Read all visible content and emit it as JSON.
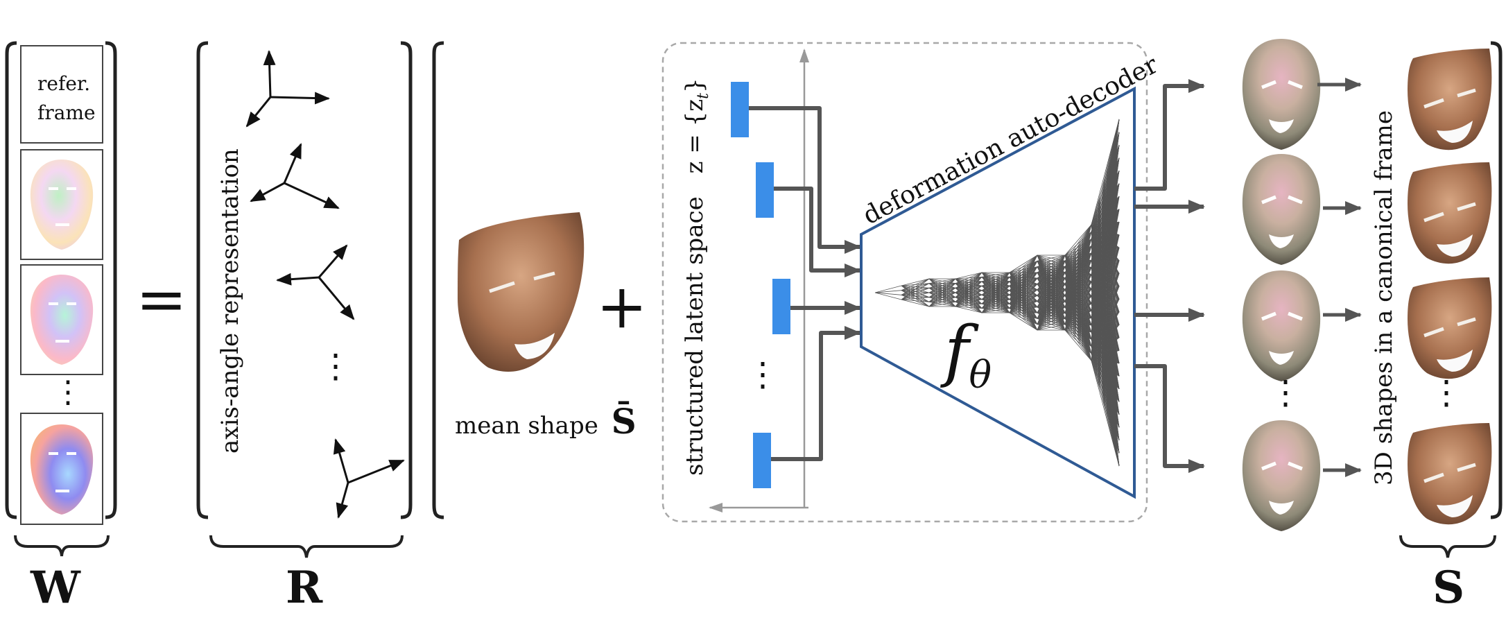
{
  "labels": {
    "W": "W",
    "R": "R",
    "S": "S",
    "equals": "=",
    "plus": "+",
    "refer_line1": "refer.",
    "refer_line2": "frame",
    "axis_angle": "axis-angle representation",
    "mean_shape": "mean shape",
    "mean_shape_symbol": "S̄",
    "latent_space": "structured latent space",
    "latent_symbol": "z = {z",
    "latent_sub": "t",
    "latent_close": "}",
    "decoder": "deformation auto-decoder",
    "f_theta_f": "f",
    "f_theta_sub": "θ",
    "canonical": "3D shapes in a canonical frame",
    "ellipsis": "⋮"
  },
  "colors": {
    "latent_block": "#3b8ee8",
    "decoder_border": "#2f5a94",
    "arrow": "#555555",
    "network": "#555555",
    "dashed_box": "#a8a8a8"
  }
}
